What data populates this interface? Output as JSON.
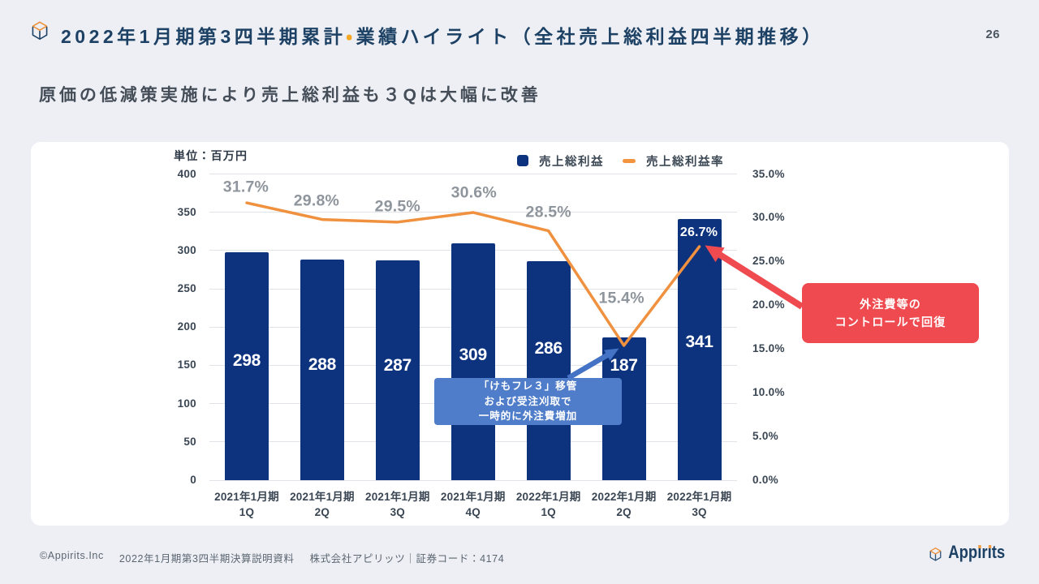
{
  "page": {
    "title": {
      "part1": "2022年1月期第3四半期累計",
      "separator": "・",
      "part2": "業績ハイライト（全社売上総利益四半期推移）"
    },
    "page_number": "26",
    "subtitle": "原価の低減策実施により売上総利益も３Qは大幅に改善",
    "footer": {
      "copyright": "©Appirits.Inc",
      "document": "2022年1月期第3四半期決算説明資料",
      "company": "株式会社アピリッツ｜証券コード：4174"
    },
    "logo_text": "Appirits"
  },
  "colors": {
    "background": "#edeff4",
    "card": "#ffffff",
    "title_navy": "#1d4164",
    "accent_orange": "#f5a623",
    "bar": "#0e337e",
    "line": "#f0913f",
    "legend_dash": "#f2943e",
    "gridline": "#e0e3e8",
    "pct_gray": "#8f959c",
    "callout_blue": "#4f7dc9",
    "arrow_blue": "#4472c4",
    "callout_red": "#ef4a4f"
  },
  "chart_data": {
    "type": "bar",
    "unit_label": "単位：百万円",
    "categories": [
      {
        "line1": "2021年1月期",
        "line2": "1Q"
      },
      {
        "line1": "2021年1月期",
        "line2": "2Q"
      },
      {
        "line1": "2021年1月期",
        "line2": "3Q"
      },
      {
        "line1": "2021年1月期",
        "line2": "4Q"
      },
      {
        "line1": "2022年1月期",
        "line2": "1Q"
      },
      {
        "line1": "2022年1月期",
        "line2": "2Q"
      },
      {
        "line1": "2022年1月期",
        "line2": "3Q"
      }
    ],
    "series": [
      {
        "name": "売上総利益",
        "type": "bar",
        "axis": "left",
        "values": [
          298,
          288,
          287,
          309,
          286,
          187,
          341
        ]
      },
      {
        "name": "売上総利益率",
        "type": "line",
        "axis": "right",
        "values_pct": [
          31.7,
          29.8,
          29.5,
          30.6,
          28.5,
          15.4,
          26.7
        ],
        "point_labels": [
          "31.7%",
          "29.8%",
          "29.5%",
          "30.6%",
          "28.5%",
          "15.4%",
          "26.7%"
        ]
      }
    ],
    "left_axis": {
      "min": 0,
      "max": 400,
      "step": 50
    },
    "right_axis": {
      "min": 0,
      "max": 35,
      "step": 5,
      "suffix": "%"
    },
    "grid": true,
    "legend_position": "top-right",
    "annotations": [
      {
        "id": "dip",
        "lines": [
          "「けもフレ３」移管",
          "および受注刈取で",
          "一時的に外注費増加"
        ],
        "target": "2022年1月期 2Q"
      },
      {
        "id": "recovery",
        "lines": [
          "外注費等の",
          "コントロールで回復"
        ],
        "target": "2022年1月期 3Q"
      }
    ]
  }
}
